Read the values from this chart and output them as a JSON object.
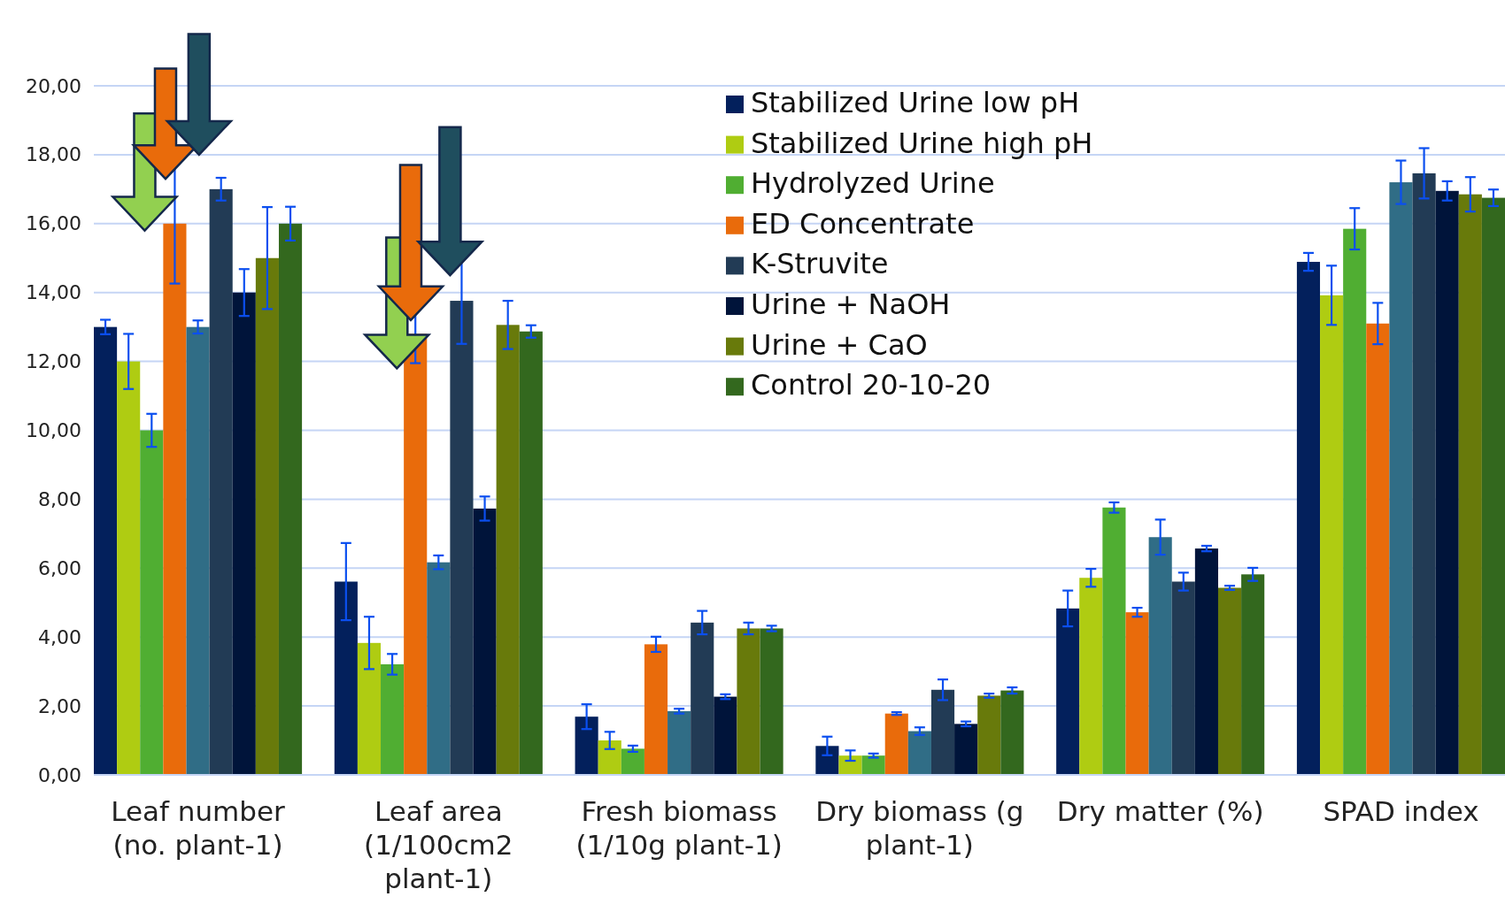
{
  "chart_data": {
    "type": "bar",
    "categories": [
      "Leaf number (no. plant-1)",
      "Leaf area (1/100cm2 plant-1)",
      "Fresh biomass (1/10g plant-1)",
      "Dry biomass (g plant-1)",
      "Dry matter (%)",
      "SPAD index"
    ],
    "series": [
      {
        "name": "Stabilized Urine low pH",
        "color": "#03205c",
        "values": [
          13,
          5.61,
          1.69,
          0.84,
          4.83,
          14.89
        ],
        "errors": [
          0.21,
          1.12,
          0.36,
          0.27,
          0.52,
          0.26
        ]
      },
      {
        "name": "Stabilized Urine high pH",
        "color": "#afcc12",
        "values": [
          12,
          3.83,
          1.0,
          0.56,
          5.72,
          13.92
        ],
        "errors": [
          0.8,
          0.76,
          0.25,
          0.15,
          0.26,
          0.86
        ]
      },
      {
        "name": "Hydrolyzed Urine",
        "color": "#50ae32",
        "values": [
          10,
          3.21,
          0.76,
          0.56,
          7.76,
          15.85
        ],
        "errors": [
          0.48,
          0.3,
          0.09,
          0.06,
          0.15,
          0.6
        ]
      },
      {
        "name": "ED Concentrate",
        "color": "#e96b0b",
        "values": [
          16,
          12.8,
          3.79,
          1.78,
          4.72,
          13.1
        ],
        "errors": [
          1.74,
          0.85,
          0.22,
          0.04,
          0.13,
          0.6
        ]
      },
      {
        "color": "#306d86",
        "values": [
          13,
          6.17,
          1.85,
          1.27,
          6.9,
          17.2
        ],
        "errors": [
          0.19,
          0.2,
          0.07,
          0.11,
          0.51,
          0.63
        ]
      },
      {
        "name": "K-Struvite",
        "color": "#223b55",
        "values": [
          17,
          13.76,
          4.42,
          2.47,
          5.61,
          17.46
        ],
        "errors": [
          0.33,
          1.25,
          0.34,
          0.3,
          0.26,
          0.73
        ]
      },
      {
        "name": "Urine + NaOH",
        "color": "#00143a",
        "values": [
          14,
          7.73,
          2.27,
          1.48,
          6.57,
          16.95
        ],
        "errors": [
          0.68,
          0.35,
          0.07,
          0.07,
          0.08,
          0.28
        ]
      },
      {
        "name": "Urine + CaO",
        "color": "#687a0b",
        "values": [
          15,
          13.06,
          4.25,
          2.3,
          5.43,
          16.85
        ],
        "errors": [
          1.48,
          0.7,
          0.17,
          0.06,
          0.06,
          0.5
        ]
      },
      {
        "name": "Control 20-10-20",
        "color": "#33681e",
        "values": [
          16,
          12.87,
          4.25,
          2.45,
          5.82,
          16.75
        ],
        "errors": [
          0.49,
          0.18,
          0.08,
          0.09,
          0.19,
          0.24
        ]
      }
    ],
    "ylim": [
      0,
      20
    ],
    "yticks": [
      {
        "value": 0,
        "label": "0,00"
      },
      {
        "value": 2,
        "label": "2,00"
      },
      {
        "value": 4,
        "label": "4,00"
      },
      {
        "value": 6,
        "label": "6,00"
      },
      {
        "value": 8,
        "label": "8,00"
      },
      {
        "value": 10,
        "label": "10,00"
      },
      {
        "value": 12,
        "label": "12,00"
      },
      {
        "value": 14,
        "label": "14,00"
      },
      {
        "value": 16,
        "label": "16,00"
      },
      {
        "value": 18,
        "label": "18,00"
      },
      {
        "value": 20,
        "label": "20,00"
      }
    ],
    "grid": "y",
    "legend": "top"
  }
}
